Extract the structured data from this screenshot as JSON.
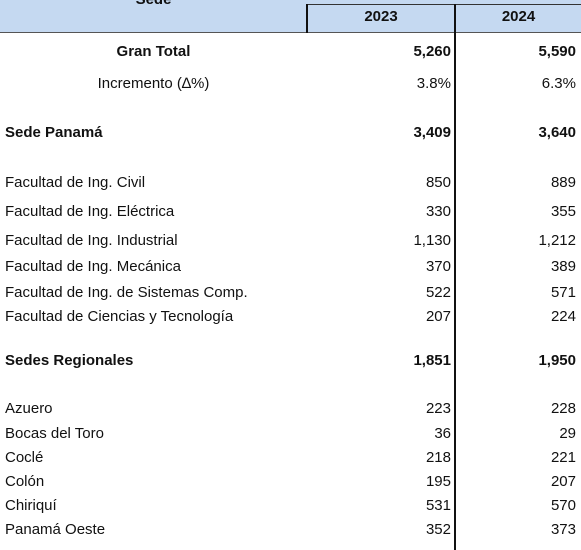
{
  "table": {
    "header": {
      "title": "Sede",
      "columns": [
        "2023",
        "2024"
      ]
    },
    "rows": [
      {
        "label": "Gran Total",
        "values": [
          "5,260",
          "5,590"
        ],
        "bold": true,
        "center": true
      },
      {
        "label": "Incremento (∆%)",
        "values": [
          "3.8%",
          "6.3%"
        ],
        "center": true
      },
      {
        "label": "Sede Panamá",
        "values": [
          "3,409",
          "3,640"
        ],
        "bold": true
      },
      {
        "label": "Facultad de Ing. Civil",
        "values": [
          "850",
          "889"
        ]
      },
      {
        "label": "Facultad de Ing. Eléctrica",
        "values": [
          "330",
          "355"
        ]
      },
      {
        "label": "Facultad de Ing. Industrial",
        "values": [
          "1,130",
          "1,212"
        ]
      },
      {
        "label": "Facultad de Ing. Mecánica",
        "values": [
          "370",
          "389"
        ]
      },
      {
        "label": "Facultad de Ing. de Sistemas Comp.",
        "values": [
          "522",
          "571"
        ]
      },
      {
        "label": "Facultad de Ciencias y Tecnología",
        "values": [
          "207",
          "224"
        ]
      },
      {
        "label": "Sedes Regionales",
        "values": [
          "1,851",
          "1,950"
        ],
        "bold": true
      },
      {
        "label": "Azuero",
        "values": [
          "223",
          "228"
        ]
      },
      {
        "label": "Bocas del Toro",
        "values": [
          "36",
          "29"
        ]
      },
      {
        "label": "Coclé",
        "values": [
          "218",
          "221"
        ]
      },
      {
        "label": "Colón",
        "values": [
          "195",
          "207"
        ]
      },
      {
        "label": "Chiriquí",
        "values": [
          "531",
          "570"
        ]
      },
      {
        "label": "Panamá Oeste",
        "values": [
          "352",
          "373"
        ]
      }
    ]
  }
}
